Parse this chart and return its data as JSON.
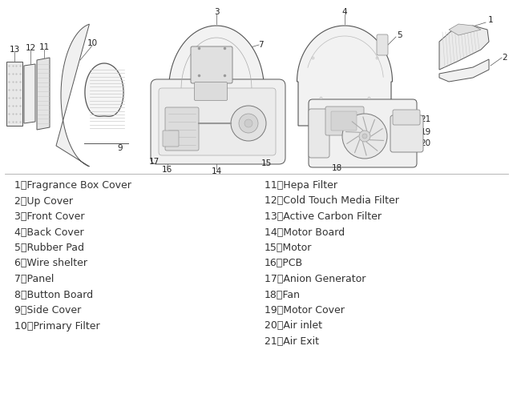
{
  "background_color": "#ffffff",
  "text_color": "#333333",
  "legend_left": [
    "1、Fragrance Box Cover",
    "2、Up Cover",
    "3、Front Cover",
    "4、Back Cover",
    "5、Rubber Pad",
    "6、Wire shelter",
    "7、Panel",
    "8、Button Board",
    "9、Side Cover",
    "10、Primary Filter"
  ],
  "legend_right": [
    "11、Hepa Filter",
    "12、Cold Touch Media Filter",
    "13、Active Carbon Filter",
    "14、Motor Board",
    "15、Motor",
    "16、PCB",
    "17、Anion Generator",
    "18、Fan",
    "19、Motor Cover",
    "20、Air inlet",
    "21、Air Exit"
  ],
  "fig_width": 6.4,
  "fig_height": 5.12,
  "dpi": 100,
  "legend_fontsize": 9.0,
  "label_fontsize": 7.5,
  "edge_color": "#555555",
  "face_color": "#f5f5f5",
  "line_color": "#888888"
}
